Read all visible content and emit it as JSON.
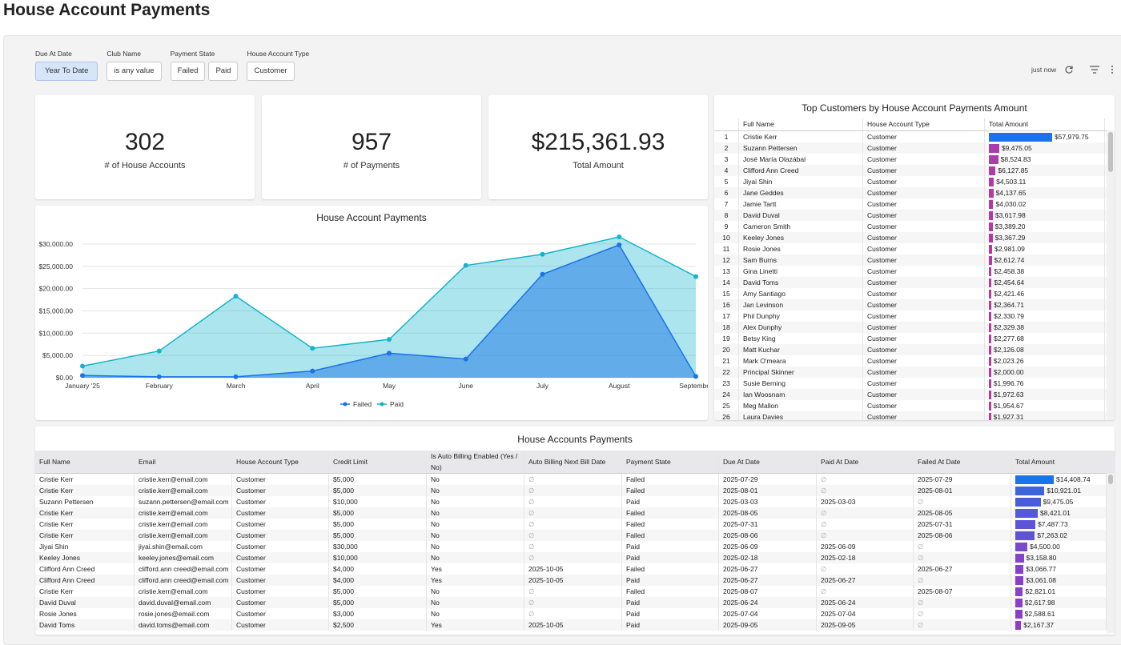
{
  "header": {
    "title": "House Account Payments"
  },
  "filters": [
    {
      "label": "Due At Date",
      "options": [
        "Year To Date"
      ]
    },
    {
      "label": "Club Name",
      "options": [
        "is any value"
      ]
    },
    {
      "label": "Payment State",
      "options": [
        "Failed",
        "Paid"
      ]
    },
    {
      "label": "House Account Type",
      "options": [
        "Customer"
      ]
    }
  ],
  "toolbar": {
    "status": "just now"
  },
  "kpis": [
    {
      "value": "302",
      "label": "# of House Accounts"
    },
    {
      "value": "957",
      "label": "# of Payments"
    },
    {
      "value": "$215,361.93",
      "label": "Total Amount"
    }
  ],
  "chart_data": {
    "type": "area",
    "title": "House Account Payments",
    "categories": [
      "January '25",
      "February",
      "March",
      "April",
      "May",
      "June",
      "July",
      "August",
      "September"
    ],
    "series": [
      {
        "name": "Failed",
        "color": "#1a73e8",
        "values": [
          500,
          200,
          200,
          1500,
          5500,
          4200,
          23200,
          29800,
          300
        ]
      },
      {
        "name": "Paid",
        "color": "#12b5cb",
        "values": [
          2600,
          6000,
          18300,
          6600,
          8600,
          25200,
          27700,
          31600,
          22700
        ]
      }
    ],
    "ylim": [
      0,
      32500
    ],
    "yticks": [
      {
        "value": 0,
        "label": "$0.00"
      },
      {
        "value": 5000,
        "label": "$5,000.00"
      },
      {
        "value": 10000,
        "label": "$10,000.00"
      },
      {
        "value": 15000,
        "label": "$15,000.00"
      },
      {
        "value": 20000,
        "label": "$20,000.00"
      },
      {
        "value": 25000,
        "label": "$25,000.00"
      },
      {
        "value": 30000,
        "label": "$30,000.00"
      }
    ],
    "grid": true,
    "legend": "bottom"
  },
  "top_customers": {
    "title": "Top Customers by House Account Payments Amount",
    "columns": [
      "Full Name",
      "House Account Type",
      "Total Amount"
    ],
    "rows": [
      {
        "rank": 1,
        "name": "Cristie Kerr",
        "type": "Customer",
        "amount": 57979.75,
        "amount_label": "$57,979.75"
      },
      {
        "rank": 2,
        "name": "Suzann Pettersen",
        "type": "Customer",
        "amount": 9475.05,
        "amount_label": "$9,475.05"
      },
      {
        "rank": 3,
        "name": "José María Olazábal",
        "type": "Customer",
        "amount": 8524.83,
        "amount_label": "$8,524.83"
      },
      {
        "rank": 4,
        "name": "Clifford Ann Creed",
        "type": "Customer",
        "amount": 6127.85,
        "amount_label": "$6,127.85"
      },
      {
        "rank": 5,
        "name": "Jiyai Shin",
        "type": "Customer",
        "amount": 4503.11,
        "amount_label": "$4,503.11"
      },
      {
        "rank": 6,
        "name": "Jane Geddes",
        "type": "Customer",
        "amount": 4137.65,
        "amount_label": "$4,137.65"
      },
      {
        "rank": 7,
        "name": "Jamie Tartt",
        "type": "Customer",
        "amount": 4030.02,
        "amount_label": "$4,030.02"
      },
      {
        "rank": 8,
        "name": "David Duval",
        "type": "Customer",
        "amount": 3617.98,
        "amount_label": "$3,617.98"
      },
      {
        "rank": 9,
        "name": "Cameron Smith",
        "type": "Customer",
        "amount": 3389.2,
        "amount_label": "$3,389.20"
      },
      {
        "rank": 10,
        "name": "Keeley Jones",
        "type": "Customer",
        "amount": 3367.29,
        "amount_label": "$3,367.29"
      },
      {
        "rank": 11,
        "name": "Rosie Jones",
        "type": "Customer",
        "amount": 2981.09,
        "amount_label": "$2,981.09"
      },
      {
        "rank": 12,
        "name": "Sam Burns",
        "type": "Customer",
        "amount": 2612.74,
        "amount_label": "$2,612.74"
      },
      {
        "rank": 13,
        "name": "Gina Linetti",
        "type": "Customer",
        "amount": 2458.38,
        "amount_label": "$2,458.38"
      },
      {
        "rank": 14,
        "name": "David Toms",
        "type": "Customer",
        "amount": 2454.64,
        "amount_label": "$2,454.64"
      },
      {
        "rank": 15,
        "name": "Amy Santiago",
        "type": "Customer",
        "amount": 2421.46,
        "amount_label": "$2,421.46"
      },
      {
        "rank": 16,
        "name": "Jan Levinson",
        "type": "Customer",
        "amount": 2364.71,
        "amount_label": "$2,364.71"
      },
      {
        "rank": 17,
        "name": "Phil Dunphy",
        "type": "Customer",
        "amount": 2330.79,
        "amount_label": "$2,330.79"
      },
      {
        "rank": 18,
        "name": "Alex Dunphy",
        "type": "Customer",
        "amount": 2329.38,
        "amount_label": "$2,329.38"
      },
      {
        "rank": 19,
        "name": "Betsy King",
        "type": "Customer",
        "amount": 2277.68,
        "amount_label": "$2,277.68"
      },
      {
        "rank": 20,
        "name": "Matt Kuchar",
        "type": "Customer",
        "amount": 2126.08,
        "amount_label": "$2,126.08"
      },
      {
        "rank": 21,
        "name": "Mark O'meara",
        "type": "Customer",
        "amount": 2023.26,
        "amount_label": "$2,023.26"
      },
      {
        "rank": 22,
        "name": "Principal Skinner",
        "type": "Customer",
        "amount": 2000.0,
        "amount_label": "$2,000.00"
      },
      {
        "rank": 23,
        "name": "Susie Berning",
        "type": "Customer",
        "amount": 1996.76,
        "amount_label": "$1,996.76"
      },
      {
        "rank": 24,
        "name": "Ian Woosnam",
        "type": "Customer",
        "amount": 1972.63,
        "amount_label": "$1,972.63"
      },
      {
        "rank": 25,
        "name": "Meg Mallon",
        "type": "Customer",
        "amount": 1954.67,
        "amount_label": "$1,954.67"
      },
      {
        "rank": 26,
        "name": "Laura Davies",
        "type": "Customer",
        "amount": 1927.31,
        "amount_label": "$1,927.31"
      }
    ]
  },
  "payments": {
    "title": "House Accounts Payments",
    "columns": [
      "Full Name",
      "Email",
      "House Account Type",
      "Credit Limit",
      "Is Auto Billing Enabled (Yes / No)",
      "Auto Billing Next Bill Date",
      "Payment State",
      "Due At Date",
      "Paid At Date",
      "Failed At Date",
      "Total Amount"
    ],
    "rows": [
      {
        "cells": [
          "Cristie Kerr",
          "cristie.kerr@email.com",
          "Customer",
          "$5,000",
          "No",
          "∅",
          "Failed",
          "2025-07-29",
          "∅",
          "2025-07-29"
        ],
        "amount": 14408.74,
        "amount_label": "$14,408.74"
      },
      {
        "cells": [
          "Cristie Kerr",
          "cristie.kerr@email.com",
          "Customer",
          "$5,000",
          "No",
          "∅",
          "Failed",
          "2025-08-01",
          "∅",
          "2025-08-01"
        ],
        "amount": 10921.01,
        "amount_label": "$10,921.01"
      },
      {
        "cells": [
          "Suzann Pettersen",
          "suzann.pettersen@email.com",
          "Customer",
          "$10,000",
          "No",
          "∅",
          "Paid",
          "2025-03-03",
          "2025-03-03",
          "∅"
        ],
        "amount": 9475.05,
        "amount_label": "$9,475.05"
      },
      {
        "cells": [
          "Cristie Kerr",
          "cristie.kerr@email.com",
          "Customer",
          "$5,000",
          "No",
          "∅",
          "Failed",
          "2025-08-05",
          "∅",
          "2025-08-05"
        ],
        "amount": 8421.01,
        "amount_label": "$8,421.01"
      },
      {
        "cells": [
          "Cristie Kerr",
          "cristie.kerr@email.com",
          "Customer",
          "$5,000",
          "No",
          "∅",
          "Failed",
          "2025-07-31",
          "∅",
          "2025-07-31"
        ],
        "amount": 7487.73,
        "amount_label": "$7,487.73"
      },
      {
        "cells": [
          "Cristie Kerr",
          "cristie.kerr@email.com",
          "Customer",
          "$5,000",
          "No",
          "∅",
          "Failed",
          "2025-08-06",
          "∅",
          "2025-08-06"
        ],
        "amount": 7263.02,
        "amount_label": "$7,263.02"
      },
      {
        "cells": [
          "Jiyai Shin",
          "jiyai.shin@email.com",
          "Customer",
          "$30,000",
          "No",
          "∅",
          "Paid",
          "2025-06-09",
          "2025-06-09",
          "∅"
        ],
        "amount": 4500.0,
        "amount_label": "$4,500.00"
      },
      {
        "cells": [
          "Keeley Jones",
          "keeley.jones@email.com",
          "Customer",
          "$10,000",
          "No",
          "∅",
          "Paid",
          "2025-02-18",
          "2025-02-18",
          "∅"
        ],
        "amount": 3158.8,
        "amount_label": "$3,158.80"
      },
      {
        "cells": [
          "Clifford Ann Creed",
          "clifford.ann creed@email.com",
          "Customer",
          "$4,000",
          "Yes",
          "2025-10-05",
          "Failed",
          "2025-06-27",
          "∅",
          "2025-06-27"
        ],
        "amount": 3066.77,
        "amount_label": "$3,066.77"
      },
      {
        "cells": [
          "Clifford Ann Creed",
          "clifford.ann creed@email.com",
          "Customer",
          "$4,000",
          "Yes",
          "2025-10-05",
          "Paid",
          "2025-06-27",
          "2025-06-27",
          "∅"
        ],
        "amount": 3061.08,
        "amount_label": "$3,061.08"
      },
      {
        "cells": [
          "Cristie Kerr",
          "cristie.kerr@email.com",
          "Customer",
          "$5,000",
          "No",
          "∅",
          "Failed",
          "2025-08-07",
          "∅",
          "2025-08-07"
        ],
        "amount": 2821.01,
        "amount_label": "$2,821.01"
      },
      {
        "cells": [
          "David Duval",
          "david.duval@email.com",
          "Customer",
          "$5,000",
          "No",
          "∅",
          "Paid",
          "2025-06-24",
          "2025-06-24",
          "∅"
        ],
        "amount": 2617.98,
        "amount_label": "$2,617.98"
      },
      {
        "cells": [
          "Rosie Jones",
          "rosie.jones@email.com",
          "Customer",
          "$3,000",
          "No",
          "∅",
          "Paid",
          "2025-07-04",
          "2025-07-04",
          "∅"
        ],
        "amount": 2588.61,
        "amount_label": "$2,588.61"
      },
      {
        "cells": [
          "David Toms",
          "david.toms@email.com",
          "Customer",
          "$2,500",
          "Yes",
          "2025-10-05",
          "Paid",
          "2025-09-05",
          "2025-09-05",
          "∅"
        ],
        "amount": 2167.37,
        "amount_label": "$2,167.37"
      }
    ]
  }
}
